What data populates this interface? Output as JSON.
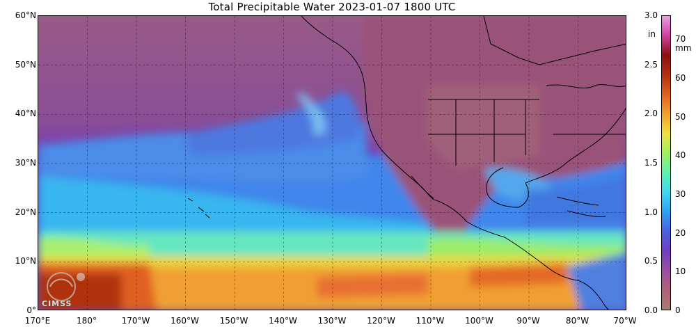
{
  "title": "Total Precipitable Water  2023-01-07 1800 UTC",
  "map": {
    "projection": "equirectangular",
    "lon_range": [
      170,
      290
    ],
    "lat_range": [
      0,
      60
    ],
    "lat_labels": [
      "60°N",
      "50°N",
      "40°N",
      "30°N",
      "20°N",
      "10°N",
      "0°"
    ],
    "lat_values": [
      60,
      50,
      40,
      30,
      20,
      10,
      0
    ],
    "lon_labels": [
      "170°E",
      "180°",
      "170°W",
      "160°W",
      "150°W",
      "140°W",
      "130°W",
      "120°W",
      "110°W",
      "100°W",
      "90°W",
      "80°W",
      "70°W"
    ],
    "lon_values": [
      170,
      180,
      190,
      200,
      210,
      220,
      230,
      240,
      250,
      260,
      270,
      280,
      290
    ],
    "gridlines": true,
    "field": "Total Precipitable Water"
  },
  "colorbar": {
    "unit_in": "in",
    "unit_mm": "mm",
    "in_ticks": [
      "3.0",
      "2.5",
      "2.0",
      "1.5",
      "1.0",
      "0.5",
      "0.0"
    ],
    "in_values": [
      3.0,
      2.5,
      2.0,
      1.5,
      1.0,
      0.5,
      0.0
    ],
    "mm_ticks": [
      "70",
      "60",
      "50",
      "40",
      "30",
      "20",
      "10",
      "0"
    ],
    "mm_values": [
      70,
      60,
      50,
      40,
      30,
      20,
      10,
      0
    ],
    "max_mm": 76.2,
    "colors": [
      "#a87a6e",
      "#b0607a",
      "#9a4fa0",
      "#7040c0",
      "#4a60e0",
      "#30a0f0",
      "#40d8f0",
      "#60f0b0",
      "#a0f060",
      "#f0e040",
      "#f0a030",
      "#e06020",
      "#b03010",
      "#8a1010",
      "#d040a0",
      "#e8a0e0"
    ]
  },
  "logo": {
    "text": "CIMSS"
  }
}
